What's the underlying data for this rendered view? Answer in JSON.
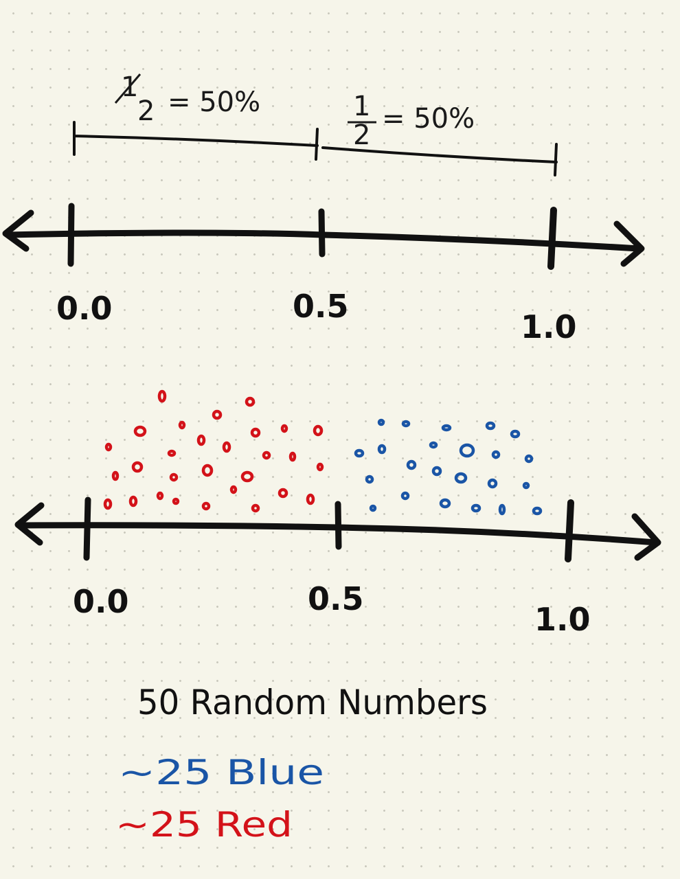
{
  "top_numberline": {
    "ticks": [
      "0.0",
      "0.5",
      "1.0"
    ],
    "segments": [
      {
        "num": "1",
        "den": "2",
        "text": "= 50%"
      },
      {
        "num": "1",
        "den": "2",
        "text": "= 50%"
      }
    ]
  },
  "bottom_numberline": {
    "ticks": [
      "0.0",
      "0.5",
      "1.0"
    ]
  },
  "caption": {
    "title": "50 Random Numbers",
    "blue_line": "~25 Blue",
    "red_line": "~25 Red"
  },
  "colors": {
    "ink": "#111111",
    "red": "#d31219",
    "blue": "#1a55a6",
    "paper": "#f6f5ea"
  }
}
